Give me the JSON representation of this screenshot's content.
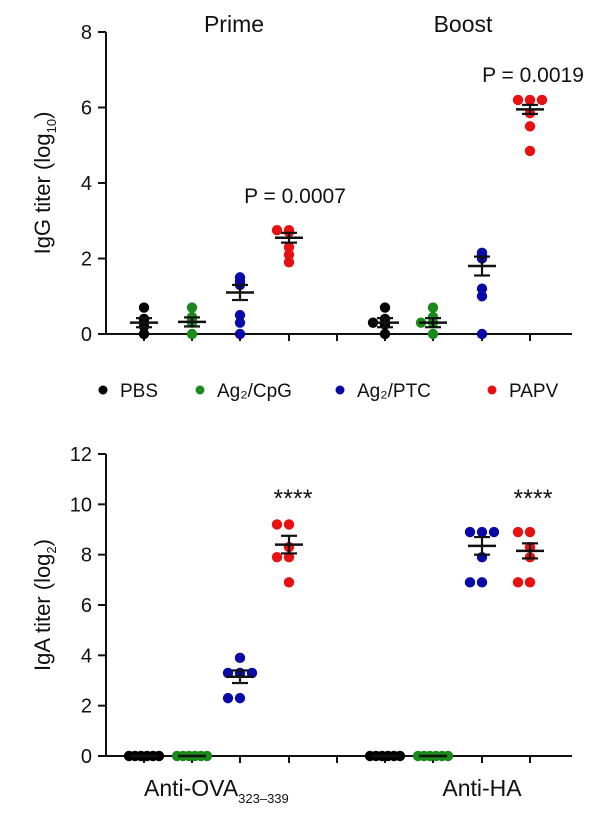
{
  "legend": [
    {
      "label": "PBS",
      "color": "#000000"
    },
    {
      "label": "Ag₂/CpG",
      "color": "#1a8a1a"
    },
    {
      "label": "Ag₂/PTC",
      "color": "#0a0aa8"
    },
    {
      "label": "PAPV",
      "color": "#e81010"
    }
  ],
  "chart_data": [
    {
      "type": "scatter",
      "ylabel": "IgG titer (log10)",
      "ylabel_main": "IgG titer (log",
      "ylabel_sub": "10",
      "ylabel_close": ")",
      "ylim": [
        0,
        8
      ],
      "yticks": [
        "0",
        "2",
        "4",
        "6",
        "8"
      ],
      "groups": [
        {
          "title": "Prime",
          "annotation": "P = 0.0007",
          "series": [
            {
              "name": "PBS",
              "color": "#000000",
              "values": [
                0.0,
                0.2,
                0.3,
                0.4,
                0.7
              ],
              "mean": 0.3,
              "sem": 0.12
            },
            {
              "name": "Ag₂/CpG",
              "color": "#1a8a1a",
              "values": [
                0.0,
                0.3,
                0.4,
                0.45,
                0.7
              ],
              "mean": 0.32,
              "sem": 0.12
            },
            {
              "name": "Ag₂/PTC",
              "color": "#0a0aa8",
              "values": [
                0.0,
                0.3,
                0.5,
                1.3,
                1.4,
                1.5
              ],
              "mean": 1.1,
              "sem": 0.2
            },
            {
              "name": "PAPV",
              "color": "#e81010",
              "values": [
                1.9,
                2.1,
                2.3,
                2.7,
                2.75,
                2.75
              ],
              "mean": 2.55,
              "sem": 0.13
            }
          ]
        },
        {
          "title": "Boost",
          "annotation": "P = 0.0019",
          "series": [
            {
              "name": "PBS",
              "color": "#000000",
              "values": [
                0.0,
                0.25,
                0.3,
                0.4,
                0.7
              ],
              "mean": 0.3,
              "sem": 0.12
            },
            {
              "name": "Ag₂/CpG",
              "color": "#1a8a1a",
              "values": [
                0.0,
                0.3,
                0.3,
                0.45,
                0.7
              ],
              "mean": 0.3,
              "sem": 0.12
            },
            {
              "name": "Ag₂/PTC",
              "color": "#0a0aa8",
              "values": [
                0.0,
                1.0,
                1.2,
                2.0,
                2.1,
                2.15
              ],
              "mean": 1.8,
              "sem": 0.25
            },
            {
              "name": "PAPV",
              "color": "#e81010",
              "values": [
                4.85,
                5.5,
                5.85,
                6.2,
                6.2,
                6.2
              ],
              "mean": 5.95,
              "sem": 0.12
            }
          ]
        }
      ]
    },
    {
      "type": "scatter",
      "ylabel": "IgA titer (log2)",
      "ylabel_main": "IgA titer (log",
      "ylabel_sub": "2",
      "ylabel_close": ")",
      "ylim": [
        0,
        12
      ],
      "yticks": [
        "0",
        "2",
        "4",
        "6",
        "8",
        "10",
        "12"
      ],
      "groups": [
        {
          "title": "Anti-OVA323–339",
          "title_main": "Anti-OVA",
          "title_sub": "323–339",
          "annotation": "****",
          "series": [
            {
              "name": "PBS",
              "color": "#000000",
              "values": [
                0,
                0,
                0,
                0,
                0,
                0
              ],
              "mean": 0,
              "sem": 0
            },
            {
              "name": "Ag₂/CpG",
              "color": "#1a8a1a",
              "values": [
                0,
                0,
                0,
                0,
                0,
                0
              ],
              "mean": 0,
              "sem": 0
            },
            {
              "name": "Ag₂/PTC",
              "color": "#0a0aa8",
              "values": [
                2.3,
                2.3,
                3.3,
                3.3,
                3.3,
                3.9
              ],
              "mean": 3.15,
              "sem": 0.25
            },
            {
              "name": "PAPV",
              "color": "#e81010",
              "values": [
                6.9,
                7.9,
                7.9,
                8.3,
                9.2,
                9.2
              ],
              "mean": 8.4,
              "sem": 0.35
            }
          ]
        },
        {
          "title": "Anti-HA",
          "title_main": "Anti-HA",
          "title_sub": "",
          "annotation": "****",
          "series": [
            {
              "name": "PBS",
              "color": "#000000",
              "values": [
                0,
                0,
                0,
                0,
                0,
                0
              ],
              "mean": 0,
              "sem": 0
            },
            {
              "name": "Ag₂/CpG",
              "color": "#1a8a1a",
              "values": [
                0,
                0,
                0,
                0,
                0,
                0
              ],
              "mean": 0,
              "sem": 0
            },
            {
              "name": "Ag₂/PTC",
              "color": "#0a0aa8",
              "values": [
                6.9,
                6.9,
                7.9,
                8.9,
                8.9,
                8.9
              ],
              "mean": 8.35,
              "sem": 0.35
            },
            {
              "name": "PAPV",
              "color": "#e81010",
              "values": [
                6.9,
                6.9,
                7.9,
                8.3,
                8.9,
                8.9
              ],
              "mean": 8.15,
              "sem": 0.3
            }
          ]
        }
      ]
    }
  ]
}
